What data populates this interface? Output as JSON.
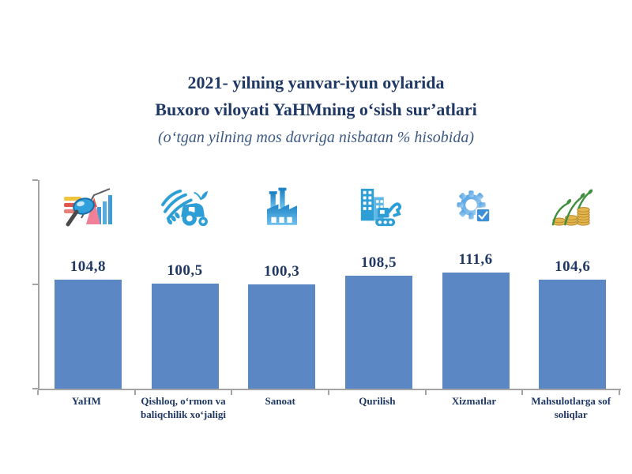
{
  "title": {
    "line1": "2021- yilning yanvar-iyun oylarida",
    "line2": "Buxoro viloyati YaHMning o‘sish sur’atlari",
    "subtitle": "(o‘tgan yilning mos davriga nisbatan % hisobida)"
  },
  "chart_data": {
    "type": "bar",
    "title": "2021- yilning yanvar-iyun oylarida Buxoro viloyati YaHMning o‘sish sur’atlari",
    "subtitle": "(o‘tgan yilning mos davriga nisbatan % hisobida)",
    "categories": [
      "YaHM",
      "Qishloq, o‘rmon va baliqchilik xo‘jaligi",
      "Sanoat",
      "Qurilish",
      "Xizmatlar",
      "Mahsulotlarga sof soliqlar"
    ],
    "values": [
      104.8,
      100.5,
      100.3,
      108.5,
      111.6,
      104.6
    ],
    "value_labels": [
      "104,8",
      "100,5",
      "100,3",
      "108,5",
      "111,6",
      "104,6"
    ],
    "icons": [
      "analytics-magnifier-icon",
      "agriculture-tractor-icon",
      "industry-factory-icon",
      "construction-excavator-icon",
      "services-gear-icon",
      "taxes-coins-icon"
    ],
    "unit": "%",
    "ylim": [
      0,
      200
    ],
    "y_axis_labels_visible": false,
    "grid": false,
    "legend": "none",
    "bar_color": "#5b87c5",
    "axis_color": "#a3a3a3",
    "label_color": "#1f3864"
  },
  "colors": {
    "title": "#1f3864",
    "subtitle": "#3c5a84",
    "bar": "#5b87c5",
    "axis": "#a3a3a3",
    "icon_blue": "#2e9fd6"
  }
}
